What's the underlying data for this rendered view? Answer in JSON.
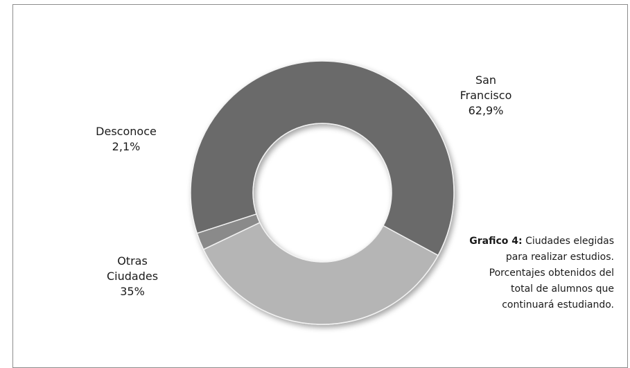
{
  "chart_data": {
    "type": "pie",
    "subtype": "donut",
    "slices": [
      {
        "name": "San Francisco",
        "label_lines": [
          "San",
          "Francisco"
        ],
        "value_text": "62,9%",
        "value": 62.9,
        "color": "#6b6b6b"
      },
      {
        "name": "Otras Ciudades",
        "label_lines": [
          "Otras",
          "Ciudades"
        ],
        "value_text": "35%",
        "value": 35.0,
        "color": "#b5b5b5"
      },
      {
        "name": "Desconoce",
        "label_lines": [
          "Desconoce"
        ],
        "value_text": "2,1%",
        "value": 2.1,
        "color": "#8a8a8a"
      }
    ]
  },
  "caption": {
    "bold": "Grafico 4:",
    "text": " Ciudades elegidas para realizar estudios. Porcentajes obtenidos del total de alumnos que continuará estudiando."
  }
}
